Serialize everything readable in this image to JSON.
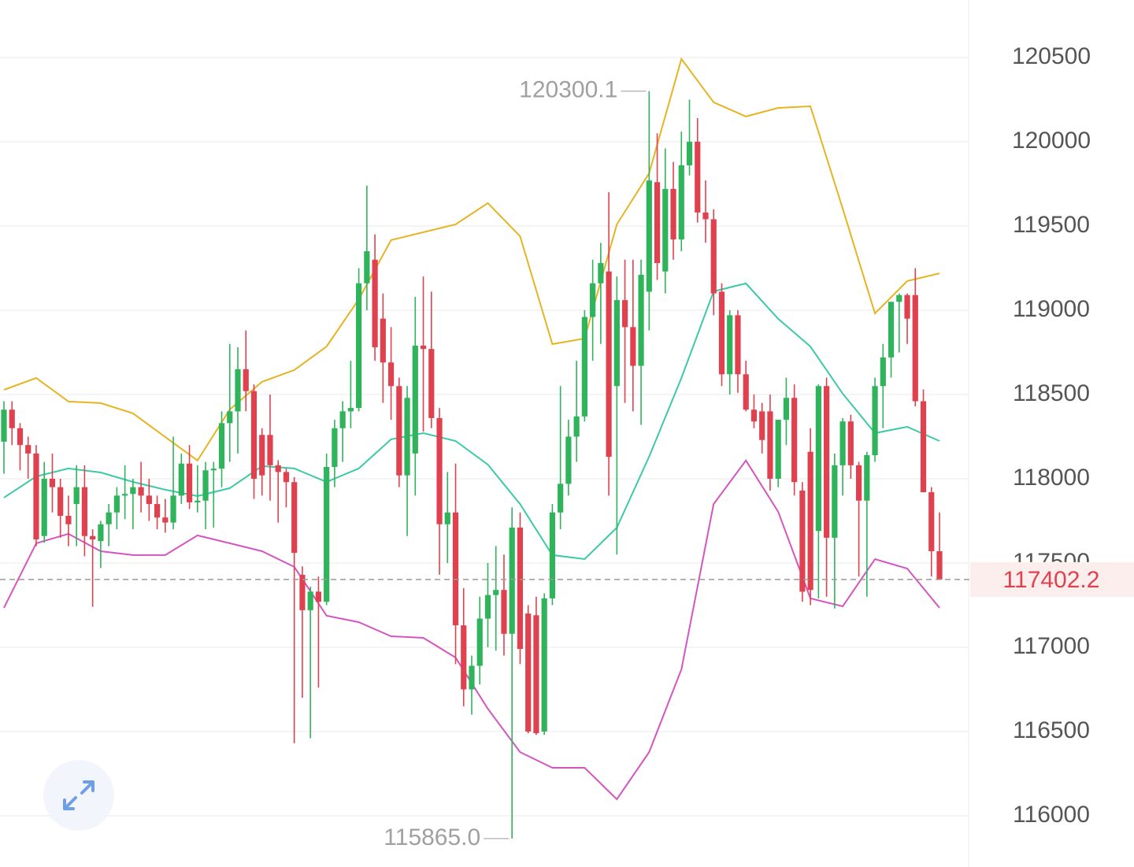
{
  "chart_data": {
    "type": "candlestick",
    "up_color": "#2fb35b",
    "down_color": "#e0414f",
    "ylim": [
      115696,
      120841
    ],
    "yticks": [
      116000,
      116500,
      117000,
      117500,
      118000,
      118500,
      119000,
      119500,
      120000,
      120500
    ],
    "grid": true,
    "open": [
      118220,
      118410,
      118300,
      118200,
      118150,
      117660,
      118000,
      117950,
      117780,
      117850,
      117950,
      117660,
      117630,
      117730,
      117800,
      117900,
      117910,
      117950,
      117900,
      117850,
      117770,
      117740,
      117900,
      118090,
      117860,
      117870,
      118050,
      118060,
      118330,
      118400,
      118650,
      118520,
      118260,
      118260,
      118080,
      118040,
      117980,
      117430,
      117220,
      117330,
      117270,
      118070,
      118300,
      118400,
      118420,
      119160,
      119300,
      118950,
      118690,
      118550,
      118020,
      118150,
      118790,
      118770,
      118360,
      117730,
      117800,
      117130,
      116750,
      116890,
      117170,
      117310,
      117340,
      117080,
      117710,
      117200,
      117190,
      116500,
      117290,
      117800,
      117970,
      118250,
      118370,
      118960,
      119160,
      119230,
      118550,
      119060,
      118900,
      118670,
      119110,
      119760,
      119230,
      119720,
      119420,
      119860,
      120000,
      119580,
      119540,
      119110,
      118620,
      118970,
      118620,
      118410,
      118400,
      118400,
      118000,
      118350,
      118480,
      117930,
      118160,
      117690,
      118550,
      117650,
      118080,
      118340,
      118080,
      117870,
      118140,
      118550,
      118720,
      119050,
      119090,
      119090,
      118460,
      117920,
      117570
    ],
    "high": [
      118460,
      118460,
      118330,
      118250,
      118200,
      118100,
      118150,
      118000,
      117900,
      118080,
      118080,
      117700,
      117750,
      117850,
      117950,
      118080,
      118000,
      118100,
      118000,
      117900,
      117880,
      118250,
      118150,
      118200,
      118080,
      118100,
      118100,
      118400,
      118800,
      118780,
      118880,
      118560,
      118300,
      118500,
      118110,
      118060,
      118010,
      117480,
      117360,
      117420,
      118150,
      118350,
      118460,
      118700,
      119250,
      119740,
      119450,
      119100,
      118900,
      118600,
      118550,
      119080,
      119200,
      119110,
      118420,
      118040,
      118090,
      117350,
      116950,
      117300,
      117500,
      117600,
      117550,
      117830,
      117800,
      117250,
      117300,
      117320,
      117850,
      118550,
      118350,
      118700,
      119000,
      119300,
      119400,
      119700,
      119200,
      119300,
      119300,
      119300,
      120300.1,
      120050,
      119960,
      119880,
      120060,
      120250,
      120140,
      119770,
      119600,
      119160,
      119000,
      119000,
      118700,
      118500,
      118450,
      118500,
      118300,
      118600,
      118560,
      117980,
      118300,
      118560,
      118600,
      118150,
      118360,
      118380,
      118100,
      118160,
      118600,
      118800,
      119050,
      119100,
      119100,
      119250,
      118530,
      117950,
      117800
    ],
    "low": [
      118030,
      118200,
      118050,
      118000,
      117600,
      117620,
      117800,
      117650,
      117600,
      117600,
      117540,
      117240,
      117470,
      117600,
      117700,
      117760,
      117700,
      117800,
      117750,
      117700,
      117680,
      117700,
      117850,
      117820,
      117800,
      117700,
      117710,
      117950,
      118100,
      118150,
      118400,
      117880,
      117900,
      117870,
      117740,
      117830,
      116430,
      116700,
      116460,
      116760,
      117250,
      117950,
      118100,
      118300,
      118400,
      119000,
      118700,
      118450,
      118350,
      117950,
      117660,
      117900,
      118280,
      118300,
      117430,
      117500,
      116900,
      116650,
      116600,
      116780,
      117000,
      116980,
      116950,
      115865,
      116900,
      116490,
      116480,
      116480,
      117250,
      117700,
      117900,
      118100,
      118340,
      118700,
      118800,
      117900,
      117550,
      118450,
      118400,
      118320,
      118880,
      119180,
      119100,
      119300,
      119350,
      119800,
      119520,
      119400,
      118970,
      118550,
      118500,
      118510,
      118400,
      118300,
      118150,
      117930,
      117950,
      118200,
      117900,
      117270,
      117250,
      117290,
      117300,
      117230,
      117900,
      118000,
      117420,
      117300,
      118100,
      118300,
      118600,
      118750,
      118800,
      118430,
      117920,
      117420,
      117400
    ],
    "close": [
      118410,
      118300,
      118200,
      118150,
      117640,
      118000,
      117950,
      117780,
      117730,
      117950,
      117660,
      117640,
      117730,
      117800,
      117900,
      117910,
      117950,
      117900,
      117850,
      117770,
      117740,
      117900,
      118090,
      117860,
      117870,
      118050,
      118060,
      118330,
      118400,
      118650,
      118520,
      118000,
      118020,
      118080,
      118040,
      117980,
      117560,
      117220,
      117330,
      117270,
      118070,
      118300,
      118400,
      118420,
      119160,
      119350,
      118780,
      118690,
      118550,
      118020,
      118480,
      118790,
      118770,
      118360,
      117730,
      117800,
      117130,
      116750,
      116890,
      117170,
      117310,
      117340,
      117080,
      117710,
      116990,
      116500,
      116490,
      117290,
      117800,
      117970,
      118250,
      118370,
      118960,
      119160,
      119280,
      118130,
      119060,
      118900,
      118670,
      119210,
      119770,
      119280,
      119720,
      119420,
      119860,
      120000,
      119580,
      119540,
      119100,
      118620,
      118970,
      118620,
      118410,
      118340,
      118230,
      118000,
      118350,
      118480,
      117980,
      117330,
      117340,
      118550,
      117650,
      118080,
      118340,
      118080,
      117870,
      118140,
      118550,
      118720,
      119050,
      119090,
      118950,
      118460,
      117920,
      117570,
      117402.2
    ],
    "bands": [
      {
        "color": "#e6b422",
        "x": [
          0,
          4,
          8,
          12,
          16,
          20,
          24,
          28,
          32,
          36,
          40,
          44,
          48,
          52,
          56,
          60,
          64,
          68,
          72,
          76,
          80,
          84,
          88,
          92,
          96,
          100,
          104,
          108,
          112,
          116
        ],
        "values": [
          118528,
          118598,
          118458,
          118449,
          118388,
          118248,
          118108,
          118411,
          118575,
          118645,
          118785,
          119065,
          119416,
          119463,
          119509,
          119636,
          119439,
          118799,
          118832,
          119509,
          119813,
          120491,
          120234,
          120150,
          120201,
          120210,
          119603,
          118981,
          119173,
          119219
        ]
      },
      {
        "color": "#3cc9a6",
        "x": [
          0,
          4,
          8,
          12,
          16,
          20,
          24,
          28,
          32,
          36,
          40,
          44,
          48,
          52,
          56,
          60,
          64,
          68,
          72,
          76,
          80,
          84,
          88,
          92,
          96,
          100,
          104,
          108,
          112,
          116
        ],
        "values": [
          117888,
          118014,
          118061,
          118037,
          117981,
          117935,
          117897,
          117944,
          118075,
          118061,
          117981,
          118061,
          118234,
          118271,
          118224,
          118084,
          117850,
          117547,
          117523,
          117710,
          118131,
          118598,
          119112,
          119159,
          118949,
          118785,
          118505,
          118271,
          118308,
          118224
        ]
      },
      {
        "color": "#d455c0",
        "x": [
          0,
          4,
          8,
          12,
          16,
          20,
          24,
          28,
          32,
          36,
          40,
          44,
          48,
          52,
          56,
          60,
          64,
          68,
          72,
          76,
          80,
          84,
          88,
          92,
          96,
          100,
          104,
          108,
          112,
          116
        ],
        "values": [
          117234,
          117617,
          117673,
          117570,
          117547,
          117547,
          117664,
          117617,
          117570,
          117477,
          117187,
          117149,
          117065,
          117056,
          116939,
          116635,
          116378,
          116285,
          116285,
          116098,
          116378,
          116869,
          117850,
          118108,
          117804,
          117290,
          117243,
          117523,
          117467,
          117234
        ]
      }
    ],
    "annotations": [
      {
        "value": 120300.1,
        "label": "120300.1"
      },
      {
        "value": 115865,
        "label": "115865.0"
      }
    ],
    "last_price": 117402.2
  }
}
